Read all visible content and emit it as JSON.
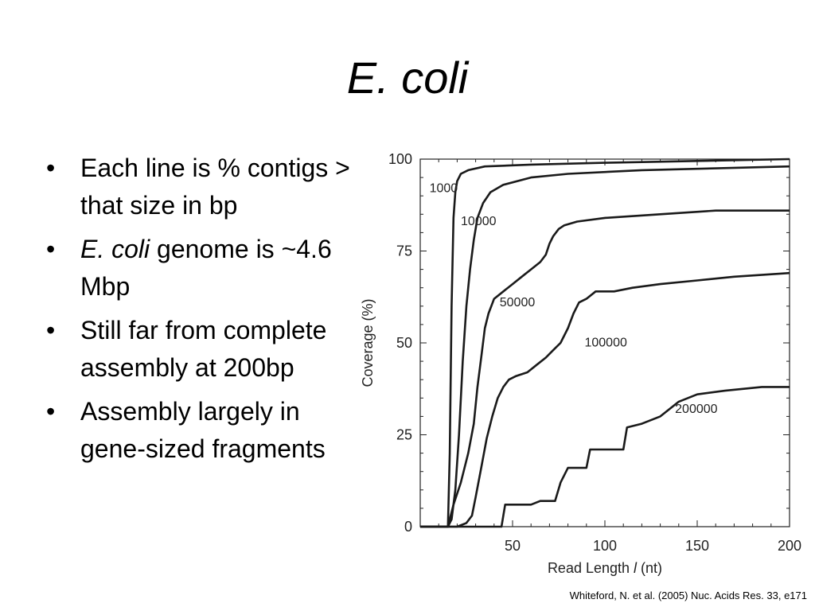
{
  "slide": {
    "title": "E. coli",
    "bullets": [
      {
        "italic": "",
        "text": "Each line is % contigs > that size in bp"
      },
      {
        "italic": "E. coli",
        "text": " genome is ~4.6 Mbp"
      },
      {
        "italic": "",
        "text": "Still far from complete assembly at 200bp"
      },
      {
        "italic": "",
        "text": "Assembly largely in gene-sized fragments"
      }
    ],
    "citation": "Whiteford, N. et al. (2005) Nuc. Acids Res. 33, e171"
  },
  "chart_data": {
    "type": "line",
    "title": "",
    "xlabel_prefix": "Read Length ",
    "xlabel_var": "l",
    "xlabel_suffix": " (nt)",
    "ylabel": "Coverage (%)",
    "xlim": [
      0,
      200
    ],
    "ylim": [
      0,
      100
    ],
    "xticks": [
      50,
      100,
      150,
      200
    ],
    "yticks": [
      0,
      25,
      50,
      75,
      100
    ],
    "grid": false,
    "line_color": "#1a1a1a",
    "series": [
      {
        "name": "1000",
        "label_at": [
          5,
          91
        ],
        "points": [
          [
            0,
            0
          ],
          [
            15,
            0
          ],
          [
            16,
            20
          ],
          [
            17,
            60
          ],
          [
            18,
            84
          ],
          [
            19,
            91
          ],
          [
            20,
            94
          ],
          [
            22,
            96
          ],
          [
            26,
            97
          ],
          [
            35,
            98
          ],
          [
            60,
            98.5
          ],
          [
            100,
            99
          ],
          [
            150,
            99.5
          ],
          [
            200,
            100
          ]
        ]
      },
      {
        "name": "10000",
        "label_at": [
          22,
          82
        ],
        "points": [
          [
            0,
            0
          ],
          [
            15,
            0
          ],
          [
            17,
            2
          ],
          [
            19,
            10
          ],
          [
            21,
            25
          ],
          [
            23,
            45
          ],
          [
            25,
            60
          ],
          [
            27,
            70
          ],
          [
            29,
            78
          ],
          [
            31,
            84
          ],
          [
            34,
            88
          ],
          [
            38,
            91
          ],
          [
            45,
            93
          ],
          [
            60,
            95
          ],
          [
            80,
            96
          ],
          [
            120,
            97
          ],
          [
            160,
            97.5
          ],
          [
            200,
            98
          ]
        ]
      },
      {
        "name": "50000",
        "label_at": [
          43,
          60
        ],
        "points": [
          [
            0,
            0
          ],
          [
            15,
            0
          ],
          [
            16,
            2
          ],
          [
            18,
            6
          ],
          [
            22,
            12
          ],
          [
            26,
            20
          ],
          [
            29,
            28
          ],
          [
            31,
            38
          ],
          [
            33,
            46
          ],
          [
            35,
            54
          ],
          [
            37,
            58
          ],
          [
            40,
            62
          ],
          [
            45,
            64
          ],
          [
            50,
            66
          ],
          [
            55,
            68
          ],
          [
            60,
            70
          ],
          [
            65,
            72
          ],
          [
            68,
            74
          ],
          [
            70,
            77
          ],
          [
            72,
            79
          ],
          [
            75,
            81
          ],
          [
            78,
            82
          ],
          [
            85,
            83
          ],
          [
            100,
            84
          ],
          [
            130,
            85
          ],
          [
            160,
            86
          ],
          [
            200,
            86
          ]
        ]
      },
      {
        "name": "100000",
        "label_at": [
          89,
          49
        ],
        "points": [
          [
            0,
            0
          ],
          [
            20,
            0
          ],
          [
            25,
            1
          ],
          [
            28,
            3
          ],
          [
            30,
            8
          ],
          [
            33,
            16
          ],
          [
            36,
            24
          ],
          [
            39,
            30
          ],
          [
            42,
            35
          ],
          [
            45,
            38
          ],
          [
            48,
            40
          ],
          [
            52,
            41
          ],
          [
            58,
            42
          ],
          [
            63,
            44
          ],
          [
            68,
            46
          ],
          [
            72,
            48
          ],
          [
            76,
            50
          ],
          [
            80,
            54
          ],
          [
            83,
            58
          ],
          [
            86,
            61
          ],
          [
            90,
            62
          ],
          [
            95,
            64
          ],
          [
            105,
            64
          ],
          [
            115,
            65
          ],
          [
            130,
            66
          ],
          [
            150,
            67
          ],
          [
            170,
            68
          ],
          [
            200,
            69
          ]
        ]
      },
      {
        "name": "200000",
        "label_at": [
          138,
          31
        ],
        "points": [
          [
            0,
            0
          ],
          [
            44,
            0
          ],
          [
            46,
            6
          ],
          [
            60,
            6
          ],
          [
            65,
            7
          ],
          [
            73,
            7
          ],
          [
            76,
            12
          ],
          [
            80,
            16
          ],
          [
            90,
            16
          ],
          [
            92,
            21
          ],
          [
            110,
            21
          ],
          [
            112,
            27
          ],
          [
            120,
            28
          ],
          [
            130,
            30
          ],
          [
            140,
            34
          ],
          [
            150,
            36
          ],
          [
            165,
            37
          ],
          [
            185,
            38
          ],
          [
            200,
            38
          ]
        ]
      }
    ]
  }
}
